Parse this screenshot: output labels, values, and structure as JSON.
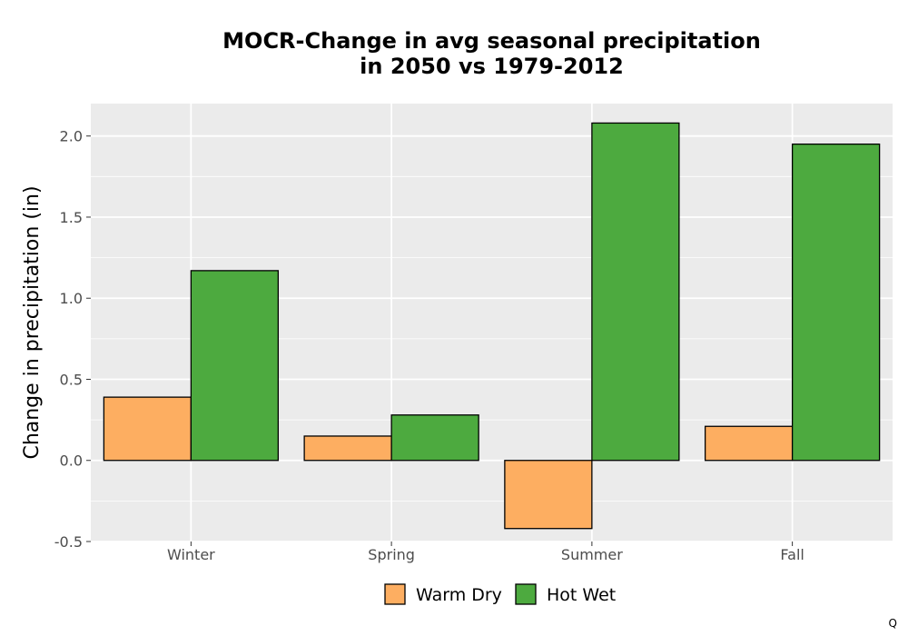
{
  "chart_data": {
    "type": "bar",
    "title": "MOCR-Change in avg seasonal precipitation\nin 2050 vs 1979-2012",
    "xlabel": "",
    "ylabel": "Change in precipitation (in)",
    "categories": [
      "Winter",
      "Spring",
      "Summer",
      "Fall"
    ],
    "series": [
      {
        "name": "Warm Dry",
        "color": "#fdae61",
        "values": [
          0.39,
          0.15,
          -0.42,
          0.21
        ]
      },
      {
        "name": "Hot Wet",
        "color": "#4daa3f",
        "values": [
          1.17,
          0.28,
          2.08,
          1.95
        ]
      }
    ],
    "ylim": [
      -0.5,
      2.2
    ],
    "yticks": [
      -0.5,
      0.0,
      0.5,
      1.0,
      1.5,
      2.0
    ],
    "ytick_labels": [
      "-0.5",
      "0.0",
      "0.5",
      "1.0",
      "1.5",
      "2.0"
    ],
    "grid": true,
    "legend_position": "bottom",
    "panel_background": "#ebebeb",
    "bar_outline": "#000000",
    "corner_note": "Q"
  }
}
